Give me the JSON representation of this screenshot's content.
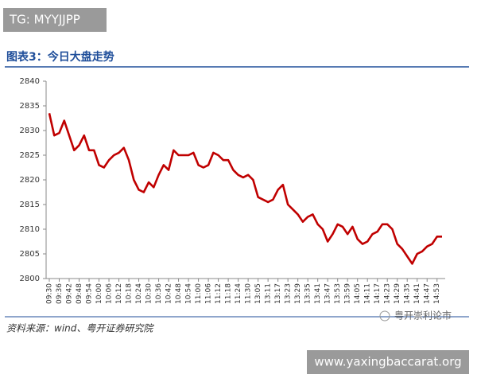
{
  "overlay_top": "TG: MYYJJPP",
  "overlay_bottom": "www.yaxingbaccarat.org",
  "account_mark": "粤开崇利论市",
  "chart_data": {
    "type": "line",
    "title": "图表3：今日大盘走势",
    "source": "资料来源：wind、粤开证券研究院",
    "categories": [
      "09:30",
      null,
      "09:36",
      null,
      "09:42",
      null,
      "09:48",
      null,
      "09:54",
      null,
      "10:00",
      null,
      "10:06",
      null,
      "10:12",
      null,
      "10:18",
      null,
      "10:24",
      null,
      "10:30",
      null,
      "10:36",
      null,
      "10:42",
      null,
      "10:48",
      null,
      "10:54",
      null,
      "11:00",
      null,
      "11:06",
      null,
      "11:12",
      null,
      "11:18",
      null,
      "11:24",
      null,
      "11:30",
      null,
      "13:05",
      null,
      "13:11",
      null,
      "13:17",
      null,
      "13:23",
      null,
      "13:29",
      null,
      "13:35",
      null,
      "13:41",
      null,
      "13:47",
      null,
      "13:53",
      null,
      "13:59",
      null,
      "14:05",
      null,
      "14:11",
      null,
      "14:17",
      null,
      "14:23",
      null,
      "14:29",
      null,
      "14:35",
      null,
      "14:41",
      null,
      "14:47",
      null,
      "14:53",
      null
    ],
    "series": [
      {
        "color": "#c00000",
        "values": [
          2833.5,
          2829,
          2829.5,
          2832,
          2829,
          2826,
          2827,
          2829,
          2826,
          2826,
          2823,
          2822.5,
          2824,
          2825,
          2825.5,
          2826.5,
          2824,
          2820,
          2818,
          2817.5,
          2819.5,
          2818.5,
          2821,
          2823,
          2822,
          2826,
          2825,
          2825,
          2825,
          2825.5,
          2823,
          2822.5,
          2823,
          2825.5,
          2825,
          2824,
          2824,
          2822,
          2821,
          2820.5,
          2821,
          2820,
          2816.5,
          2816,
          2815.5,
          2816,
          2818,
          2819,
          2815,
          2814,
          2813,
          2811.5,
          2812.5,
          2813,
          2811,
          2810,
          2807.5,
          2809,
          2811,
          2810.5,
          2809,
          2810.5,
          2808,
          2807,
          2807.5,
          2809,
          2809.5,
          2811,
          2811,
          2810,
          2807,
          2806,
          2804.5,
          2803,
          2805,
          2805.5,
          2806.5,
          2807,
          2808.5,
          2808.5
        ]
      }
    ],
    "ylim": [
      2800,
      2840
    ],
    "yticks": [
      2800,
      2805,
      2810,
      2815,
      2820,
      2825,
      2830,
      2835,
      2840
    ]
  }
}
